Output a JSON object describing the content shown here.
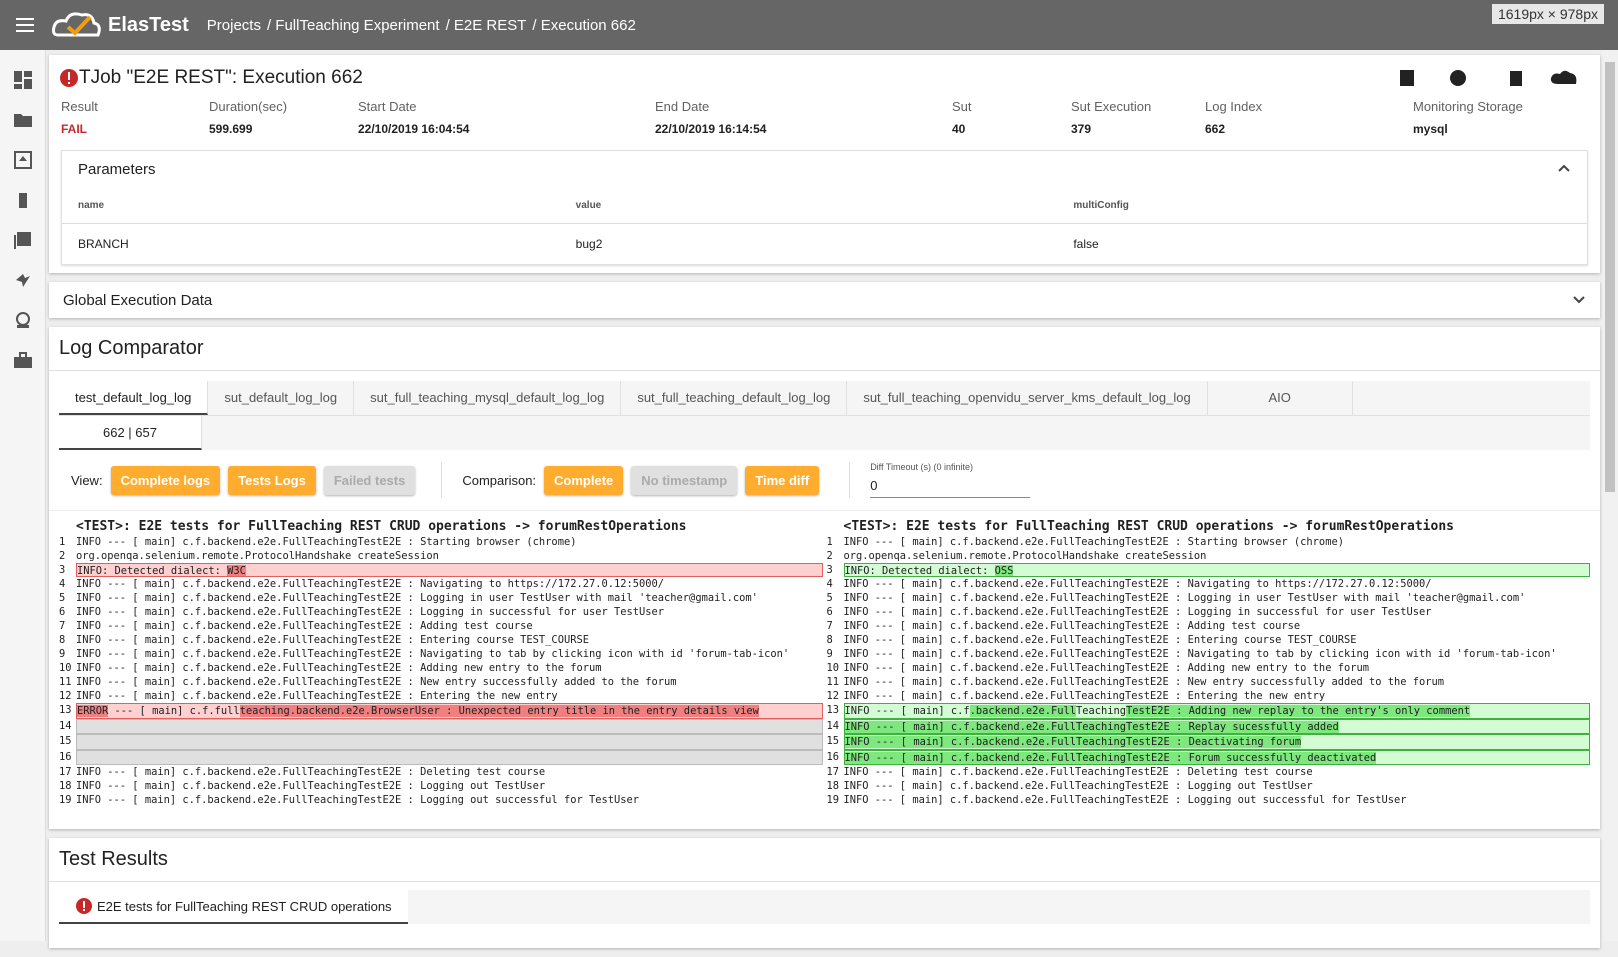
{
  "header": {
    "app": "ElasTest",
    "breadcrumbs": [
      "Projects",
      "/ FullTeaching Experiment",
      "/ E2E REST",
      "/ Execution 662"
    ],
    "size_badge": "1619px × 978px"
  },
  "job": {
    "title": "TJob \"E2E REST\": Execution 662",
    "fields": [
      {
        "label": "Result",
        "value": "FAIL",
        "color": "#c62828"
      },
      {
        "label": "Duration(sec)",
        "value": "599.699"
      },
      {
        "label": "Start Date",
        "value": "22/10/2019 16:04:54"
      },
      {
        "label": "End Date",
        "value": "22/10/2019 16:14:54"
      },
      {
        "label": "Sut",
        "value": "40"
      },
      {
        "label": "Sut Execution",
        "value": "379"
      },
      {
        "label": "Log Index",
        "value": "662"
      },
      {
        "label": "Monitoring Storage",
        "value": "mysql"
      }
    ]
  },
  "parameters": {
    "title": "Parameters",
    "columns": [
      "name",
      "value",
      "multiConfig"
    ],
    "rows": [
      [
        "BRANCH",
        "bug2",
        "false"
      ]
    ]
  },
  "global": {
    "title": "Global Execution Data"
  },
  "log_comparator": {
    "title": "Log Comparator",
    "tabs": [
      "test_default_log_log",
      "sut_default_log_log",
      "sut_full_teaching_mysql_default_log_log",
      "sut_full_teaching_default_log_log",
      "sut_full_teaching_openvidu_server_kms_default_log_log",
      "AIO"
    ],
    "subtabs": [
      "662 | 657"
    ],
    "view_label": "View:",
    "view_buttons": [
      {
        "text": "Complete logs",
        "active": true
      },
      {
        "text": "Tests Logs",
        "active": true
      },
      {
        "text": "Failed tests",
        "active": false
      }
    ],
    "comparison_label": "Comparison:",
    "comparison_buttons": [
      {
        "text": "Complete",
        "active": true
      },
      {
        "text": "No timestamp",
        "active": false
      },
      {
        "text": "Time diff",
        "active": true
      }
    ],
    "diff_timeout": {
      "label": "Diff Timeout (s) (0 infinite)",
      "value": "0"
    },
    "panes": [
      {
        "heading": "<TEST>: E2E tests for FullTeaching REST CRUD operations -> forumRestOperations",
        "diff_color": "#ffd0d0",
        "emph_color": "#f08080",
        "border": "#e06060",
        "lines": [
          {
            "n": "1",
            "parts": [
              {
                "text": "INFO --- [ main] c.f.backend.e2e.FullTeachingTestE2E : Starting browser (chrome)"
              }
            ]
          },
          {
            "n": "2",
            "parts": [
              {
                "text": "org.openqa.selenium.remote.ProtocolHandshake createSession"
              }
            ]
          },
          {
            "n": "3",
            "diff": true,
            "parts": [
              {
                "text": "INFO: Detected dialect: "
              },
              {
                "text": "W3C",
                "emph": true
              }
            ]
          },
          {
            "n": "4",
            "parts": [
              {
                "text": "INFO --- [ main] c.f.backend.e2e.FullTeachingTestE2E : Navigating to https://172.27.0.12:5000/"
              }
            ]
          },
          {
            "n": "5",
            "parts": [
              {
                "text": "INFO --- [ main] c.f.backend.e2e.FullTeachingTestE2E : Logging in user TestUser with mail 'teacher@gmail.com'"
              }
            ]
          },
          {
            "n": "6",
            "parts": [
              {
                "text": "INFO --- [ main] c.f.backend.e2e.FullTeachingTestE2E : Logging in successful for user TestUser"
              }
            ]
          },
          {
            "n": "7",
            "parts": [
              {
                "text": "INFO --- [ main] c.f.backend.e2e.FullTeachingTestE2E : Adding test course"
              }
            ]
          },
          {
            "n": "8",
            "parts": [
              {
                "text": "INFO --- [ main] c.f.backend.e2e.FullTeachingTestE2E : Entering course TEST_COURSE"
              }
            ]
          },
          {
            "n": "9",
            "parts": [
              {
                "text": "INFO --- [ main] c.f.backend.e2e.FullTeachingTestE2E : Navigating to tab by clicking icon with id 'forum-tab-icon'"
              }
            ]
          },
          {
            "n": "10",
            "parts": [
              {
                "text": "INFO --- [ main] c.f.backend.e2e.FullTeachingTestE2E : Adding new entry to the forum"
              }
            ]
          },
          {
            "n": "11",
            "parts": [
              {
                "text": "INFO --- [ main] c.f.backend.e2e.FullTeachingTestE2E : New entry successfully added to the forum"
              }
            ]
          },
          {
            "n": "12",
            "parts": [
              {
                "text": "INFO --- [ main] c.f.backend.e2e.FullTeachingTestE2E : Entering the new entry"
              }
            ]
          },
          {
            "n": "13",
            "diff": true,
            "parts": [
              {
                "text": "ERROR",
                "emph": true
              },
              {
                "text": " --- [ main] c.f.full"
              },
              {
                "text": "teaching",
                "emph": true
              },
              {
                "text": ".backend.e2e.BrowserUser : Unexpected entry title in the entry details view",
                "emph": true
              }
            ]
          },
          {
            "n": "14",
            "gap": true
          },
          {
            "n": "15",
            "gap": true
          },
          {
            "n": "16",
            "gap": true
          },
          {
            "n": "17",
            "parts": [
              {
                "text": "INFO --- [ main] c.f.backend.e2e.FullTeachingTestE2E : Deleting test course"
              }
            ]
          },
          {
            "n": "18",
            "parts": [
              {
                "text": "INFO --- [ main] c.f.backend.e2e.FullTeachingTestE2E : Logging out TestUser"
              }
            ]
          },
          {
            "n": "19",
            "parts": [
              {
                "text": "INFO --- [ main] c.f.backend.e2e.FullTeachingTestE2E : Logging out successful for TestUser"
              }
            ]
          }
        ]
      },
      {
        "heading": "<TEST>: E2E tests for FullTeaching REST CRUD operations -> forumRestOperations",
        "diff_color": "#d4fcd4",
        "emph_color": "#7ee87e",
        "border": "#40b040",
        "lines": [
          {
            "n": "1",
            "parts": [
              {
                "text": "INFO --- [ main] c.f.backend.e2e.FullTeachingTestE2E : Starting browser (chrome)"
              }
            ]
          },
          {
            "n": "2",
            "parts": [
              {
                "text": "org.openqa.selenium.remote.ProtocolHandshake createSession"
              }
            ]
          },
          {
            "n": "3",
            "diff": true,
            "parts": [
              {
                "text": "INFO: Detected dialect: "
              },
              {
                "text": "OSS",
                "emph": true
              }
            ]
          },
          {
            "n": "4",
            "parts": [
              {
                "text": "INFO --- [ main] c.f.backend.e2e.FullTeachingTestE2E : Navigating to https://172.27.0.12:5000/"
              }
            ]
          },
          {
            "n": "5",
            "parts": [
              {
                "text": "INFO --- [ main] c.f.backend.e2e.FullTeachingTestE2E : Logging in user TestUser with mail 'teacher@gmail.com'"
              }
            ]
          },
          {
            "n": "6",
            "parts": [
              {
                "text": "INFO --- [ main] c.f.backend.e2e.FullTeachingTestE2E : Logging in successful for user TestUser"
              }
            ]
          },
          {
            "n": "7",
            "parts": [
              {
                "text": "INFO --- [ main] c.f.backend.e2e.FullTeachingTestE2E : Adding test course"
              }
            ]
          },
          {
            "n": "8",
            "parts": [
              {
                "text": "INFO --- [ main] c.f.backend.e2e.FullTeachingTestE2E : Entering course TEST_COURSE"
              }
            ]
          },
          {
            "n": "9",
            "parts": [
              {
                "text": "INFO --- [ main] c.f.backend.e2e.FullTeachingTestE2E : Navigating to tab by clicking icon with id 'forum-tab-icon'"
              }
            ]
          },
          {
            "n": "10",
            "parts": [
              {
                "text": "INFO --- [ main] c.f.backend.e2e.FullTeachingTestE2E : Adding new entry to the forum"
              }
            ]
          },
          {
            "n": "11",
            "parts": [
              {
                "text": "INFO --- [ main] c.f.backend.e2e.FullTeachingTestE2E : New entry successfully added to the forum"
              }
            ]
          },
          {
            "n": "12",
            "parts": [
              {
                "text": "INFO --- [ main] c.f.backend.e2e.FullTeachingTestE2E : Entering the new entry"
              }
            ]
          },
          {
            "n": "13",
            "diff": true,
            "parts": [
              {
                "text": "INFO --- [ main] c.f"
              },
              {
                "text": ".backend.e2e.Full",
                "emph": true
              },
              {
                "text": "Teaching"
              },
              {
                "text": "TestE2E : Adding new replay to the entry's only comment",
                "emph": true
              }
            ]
          },
          {
            "n": "14",
            "diff": true,
            "parts": [
              {
                "text": "INFO --- [ main] c.f.backend.e2e.FullTeachingTestE2E : Replay sucessfully added",
                "emph": true
              }
            ]
          },
          {
            "n": "15",
            "diff": true,
            "parts": [
              {
                "text": "INFO --- [ main] c.f.backend.e2e.FullTeachingTestE2E : Deactivating forum",
                "emph": true
              }
            ]
          },
          {
            "n": "16",
            "diff": true,
            "parts": [
              {
                "text": "INFO --- [ main] c.f.backend.e2e.FullTeachingTestE2E : Forum successfully deactivated",
                "emph": true
              }
            ]
          },
          {
            "n": "17",
            "parts": [
              {
                "text": "INFO --- [ main] c.f.backend.e2e.FullTeachingTestE2E : Deleting test course"
              }
            ]
          },
          {
            "n": "18",
            "parts": [
              {
                "text": "INFO --- [ main] c.f.backend.e2e.FullTeachingTestE2E : Logging out TestUser"
              }
            ]
          },
          {
            "n": "19",
            "parts": [
              {
                "text": "INFO --- [ main] c.f.backend.e2e.FullTeachingTestE2E : Logging out successful for TestUser"
              }
            ]
          }
        ]
      }
    ]
  },
  "test_results": {
    "title": "Test Results",
    "tabs": [
      "E2E tests for FullTeaching REST CRUD operations"
    ]
  }
}
